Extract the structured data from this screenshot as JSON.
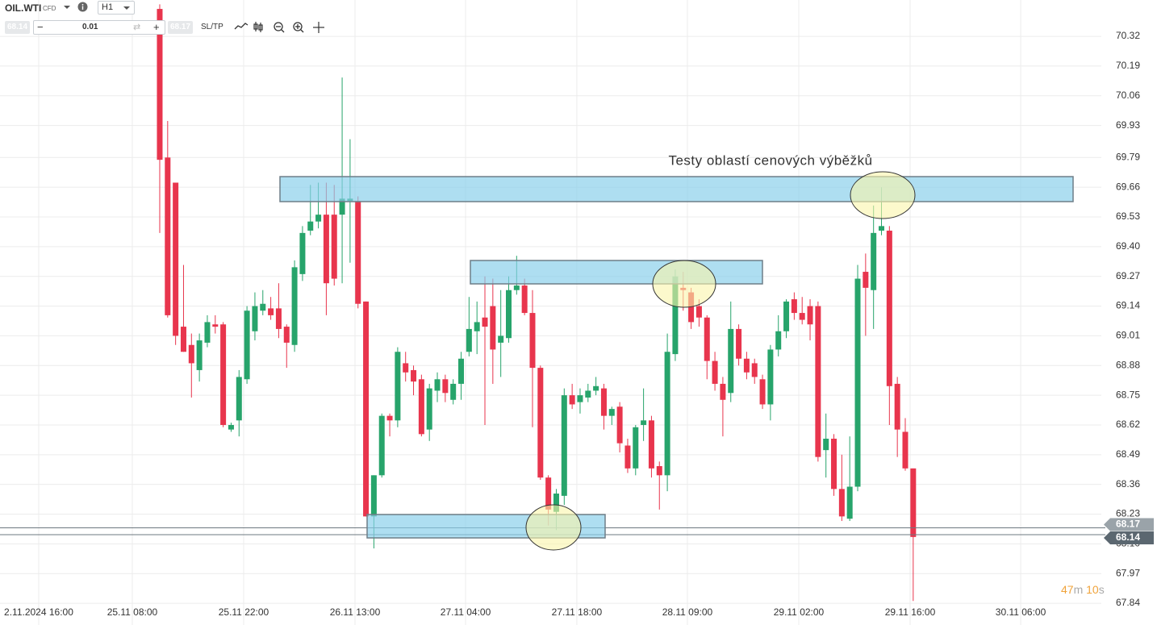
{
  "toolbar": {
    "symbol": "OIL.WTI",
    "instrument_type": "CFD",
    "timeframe": "H1",
    "bid": 68.14,
    "lot": 0.01,
    "ask": 68.17,
    "sltp": "SL/TP"
  },
  "countdown": {
    "minutes": 47,
    "minutes_unit": "m",
    "seconds": 10,
    "seconds_unit": "s"
  },
  "chart_data": {
    "type": "candlestick",
    "annotation": "Testy oblastí cenových výběžků",
    "x": [
      0,
      1,
      2,
      3,
      4,
      5,
      6,
      7,
      8,
      9,
      10,
      11,
      12,
      13,
      14,
      15,
      16,
      17,
      18,
      19,
      20,
      21,
      22,
      23,
      24,
      25,
      26,
      27,
      28,
      29,
      30,
      31,
      32,
      33,
      34,
      35,
      36,
      37,
      38,
      39,
      40,
      41,
      42,
      43,
      44,
      45,
      46,
      47,
      48,
      49,
      50,
      51,
      52,
      53,
      54,
      55,
      56,
      57,
      58,
      59,
      60,
      61,
      62,
      63,
      64,
      65,
      66,
      67,
      68,
      69,
      70,
      71,
      72,
      73,
      74,
      75,
      76,
      77,
      78,
      79,
      80,
      81,
      82,
      83,
      84,
      85,
      86,
      87,
      88,
      89,
      90,
      91,
      92,
      93,
      94,
      95
    ],
    "open": [
      70.44,
      69.79,
      69.68,
      69.05,
      68.97,
      68.86,
      68.98,
      69.06,
      69.06,
      68.6,
      68.64,
      68.82,
      69.03,
      69.12,
      69.13,
      69.13,
      69.05,
      68.97,
      69.28,
      69.47,
      69.51,
      69.54,
      69.54,
      69.54,
      69.6,
      69.6,
      69.16,
      68.22,
      68.4,
      68.66,
      68.64,
      68.89,
      68.86,
      68.82,
      68.6,
      68.77,
      68.82,
      68.73,
      68.8,
      68.94,
      69.03,
      69.09,
      69.14,
      68.98,
      69.0,
      69.21,
      69.23,
      69.11,
      68.87,
      68.39,
      68.24,
      68.31,
      68.75,
      68.72,
      68.74,
      68.77,
      68.78,
      68.66,
      68.7,
      68.53,
      68.43,
      68.62,
      68.64,
      68.44,
      68.4,
      68.93,
      69.22,
      69.2,
      69.14,
      69.09,
      68.9,
      68.8,
      68.76,
      69.04,
      68.91,
      68.89,
      68.82,
      68.71,
      68.95,
      69.03,
      69.17,
      69.11,
      69.14,
      69.14,
      68.51,
      68.56,
      68.34,
      68.21,
      68.35,
      69.29,
      69.21,
      69.47,
      69.47,
      68.8,
      68.59,
      68.43
    ],
    "high": [
      70.46,
      69.95,
      69.68,
      69.32,
      69.02,
      69.02,
      69.1,
      69.1,
      69.07,
      68.63,
      68.86,
      69.14,
      69.2,
      69.21,
      69.18,
      69.24,
      69.06,
      69.34,
      69.49,
      69.67,
      69.68,
      69.68,
      69.67,
      70.14,
      69.87,
      69.62,
      69.16,
      68.4,
      68.67,
      68.67,
      68.96,
      68.94,
      68.88,
      68.84,
      68.8,
      68.85,
      68.84,
      68.82,
      68.94,
      69.18,
      69.16,
      69.27,
      69.26,
      69.21,
      69.27,
      69.36,
      69.26,
      69.21,
      68.88,
      68.4,
      68.34,
      68.78,
      68.8,
      68.78,
      68.8,
      68.83,
      68.8,
      68.7,
      68.72,
      68.56,
      68.62,
      68.78,
      68.66,
      68.46,
      69.02,
      69.3,
      69.29,
      69.22,
      69.17,
      69.1,
      68.94,
      68.83,
      69.16,
      69.06,
      68.94,
      68.91,
      68.84,
      68.97,
      69.1,
      69.17,
      69.2,
      69.18,
      69.17,
      69.16,
      68.67,
      68.58,
      68.49,
      68.57,
      69.32,
      69.37,
      69.58,
      69.66,
      69.49,
      68.83,
      68.65,
      68.43
    ],
    "low": [
      69.46,
      69.09,
      68.97,
      68.94,
      68.74,
      68.81,
      68.96,
      69.02,
      68.61,
      68.59,
      68.57,
      68.8,
      68.99,
      69.1,
      69.08,
      69.0,
      68.87,
      68.94,
      69.25,
      69.45,
      69.48,
      69.1,
      69.23,
      69.24,
      69.33,
      69.13,
      68.22,
      68.08,
      68.39,
      68.57,
      68.61,
      68.81,
      68.75,
      68.57,
      68.55,
      68.72,
      68.72,
      68.71,
      68.73,
      68.92,
      68.93,
      68.62,
      68.8,
      68.83,
      68.98,
      69.19,
      69.1,
      68.61,
      68.38,
      68.18,
      68.16,
      68.27,
      68.69,
      68.67,
      68.72,
      68.75,
      68.6,
      68.62,
      68.5,
      68.41,
      68.4,
      68.55,
      68.39,
      68.25,
      68.33,
      68.9,
      69.12,
      69.04,
      69.05,
      68.82,
      68.77,
      68.57,
      68.72,
      68.88,
      68.82,
      68.8,
      68.69,
      68.64,
      68.92,
      69.0,
      69.08,
      69.06,
      68.99,
      68.46,
      68.39,
      68.31,
      68.2,
      68.2,
      68.33,
      69.01,
      69.04,
      69.45,
      68.62,
      68.48,
      68.42,
      67.85
    ],
    "close": [
      69.78,
      69.1,
      69.01,
      68.94,
      68.89,
      68.99,
      69.07,
      69.05,
      68.62,
      68.62,
      68.83,
      69.12,
      69.14,
      69.15,
      69.1,
      69.04,
      68.98,
      69.31,
      69.46,
      69.51,
      69.54,
      69.24,
      69.26,
      69.61,
      69.61,
      69.15,
      68.22,
      68.4,
      68.66,
      68.64,
      68.94,
      68.85,
      68.81,
      68.58,
      68.78,
      68.82,
      68.76,
      68.8,
      68.91,
      69.04,
      69.07,
      69.05,
      68.95,
      69.01,
      69.21,
      69.23,
      69.11,
      68.87,
      68.39,
      68.25,
      68.32,
      68.75,
      68.71,
      68.75,
      68.77,
      68.79,
      68.66,
      68.69,
      68.54,
      68.43,
      68.61,
      68.64,
      68.43,
      68.4,
      68.94,
      69.27,
      69.21,
      69.07,
      69.09,
      68.9,
      68.8,
      68.73,
      69.04,
      68.91,
      68.85,
      68.83,
      68.71,
      68.95,
      69.03,
      69.16,
      69.11,
      69.08,
      69.06,
      68.48,
      68.56,
      68.34,
      68.22,
      68.35,
      69.26,
      69.22,
      69.46,
      69.49,
      68.79,
      68.6,
      68.43,
      68.13
    ],
    "up_color": "#27a46b",
    "down_color": "#e8354d",
    "xlim": [
      -20.14,
      118.72
    ],
    "ylim": [
      67.745,
      70.479
    ],
    "xticks": [
      {
        "value": -15.26,
        "label": "2.11.2024 16:00"
      },
      {
        "value": -3.46,
        "label": "25.11 08:00"
      },
      {
        "value": 10.58,
        "label": "25.11 22:00"
      },
      {
        "value": 24.62,
        "label": "26.11 13:00"
      },
      {
        "value": 38.56,
        "label": "27.11 04:00"
      },
      {
        "value": 52.59,
        "label": "27.11 18:00"
      },
      {
        "value": 66.53,
        "label": "28.11 09:00"
      },
      {
        "value": 80.57,
        "label": "29.11 02:00"
      },
      {
        "value": 94.61,
        "label": "29.11 16:00"
      },
      {
        "value": 108.55,
        "label": "30.11 06:00"
      }
    ],
    "yticks": [
      70.32,
      70.19,
      70.06,
      69.93,
      69.79,
      69.66,
      69.53,
      {
        "value": 69.4,
        "label": "69.40"
      },
      69.27,
      69.14,
      69.01,
      68.88,
      68.75,
      68.62,
      68.49,
      68.36,
      68.23,
      {
        "value": 68.1,
        "label": "68.10"
      },
      67.97,
      67.84
    ],
    "grid": true,
    "ask": 68.17,
    "bid": 68.14
  }
}
